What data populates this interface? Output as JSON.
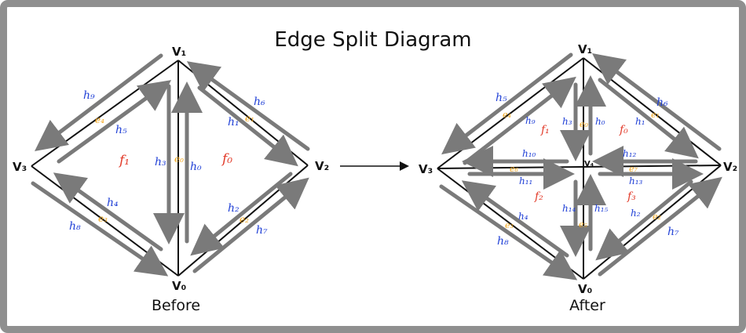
{
  "title": "Edge Split Diagram",
  "captions": {
    "before": "Before",
    "after": "After"
  },
  "colors": {
    "halfedge": "#1f3fd6",
    "face": "#e23b2a",
    "edge": "#f2a51a",
    "arrow": "#7a7a7a",
    "frame": "#8f8f8f"
  },
  "before": {
    "vertices": {
      "v0": "V₀",
      "v1": "V₁",
      "v2": "V₂",
      "v3": "V₃"
    },
    "halfedges": {
      "h0": "h₀",
      "h1": "h₁",
      "h2": "h₂",
      "h3": "h₃",
      "h4": "h₄",
      "h5": "h₅",
      "h6": "h₆",
      "h7": "h₇",
      "h8": "h₈",
      "h9": "h₉"
    },
    "edges": {
      "e0": "e₀",
      "e1": "e₁",
      "e2": "e₂",
      "e3": "e₃",
      "e4": "e₄"
    },
    "faces": {
      "f0": "f₀",
      "f1": "f₁"
    }
  },
  "after": {
    "vertices": {
      "v0": "V₀",
      "v1": "V₁",
      "v2": "V₂",
      "v3": "V₃",
      "v4": "V₄"
    },
    "halfedges": {
      "h0": "h₀",
      "h1": "h₁",
      "h2": "h₂",
      "h3": "h₃",
      "h4": "h₄",
      "h5": "h₅",
      "h6": "h₆",
      "h7": "h₇",
      "h8": "h₈",
      "h9": "h₉",
      "h10": "h₁₀",
      "h11": "h₁₁",
      "h12": "h₁₂",
      "h13": "h₁₃",
      "h14": "h₁₄",
      "h15": "h₁₅"
    },
    "edges": {
      "e0": "e₀",
      "e1": "e₁",
      "e2": "e₂",
      "e3": "e₃",
      "e4": "e₄",
      "e5": "e₅",
      "e6": "e₆",
      "e7": "e₇"
    },
    "faces": {
      "f0": "f₀",
      "f1": "f₁",
      "f2": "f₂",
      "f3": "f₃"
    }
  }
}
